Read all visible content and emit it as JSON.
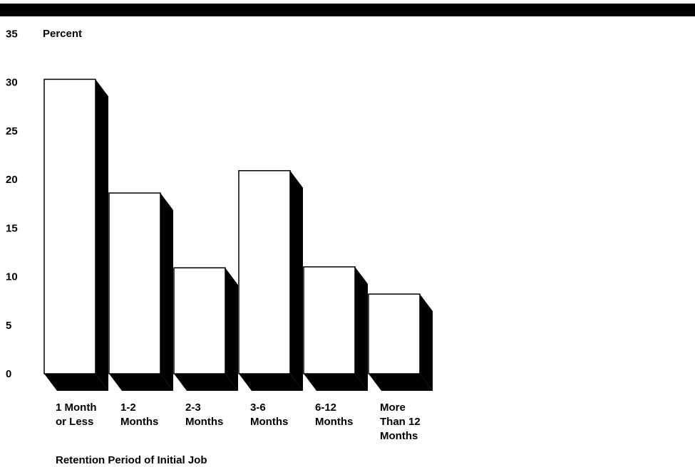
{
  "chart_data": {
    "type": "bar",
    "title": "",
    "ylabel": "Percent",
    "xlabel": "Retention Period of Initial Job",
    "ylim": [
      0,
      35
    ],
    "yticks": [
      0,
      5,
      10,
      15,
      20,
      25,
      30,
      35
    ],
    "categories": [
      [
        "1 Month",
        "or Less"
      ],
      [
        "1-2",
        "Months"
      ],
      [
        "2-3",
        "Months"
      ],
      [
        "3-6",
        "Months"
      ],
      [
        "6-12",
        "Months"
      ],
      [
        "More",
        "Than 12",
        "Months"
      ]
    ],
    "values": [
      30.3,
      18.6,
      10.9,
      20.9,
      11.0,
      8.2
    ],
    "grid": false,
    "bar_style": "3d-shadow",
    "colors": {
      "bar_face": "#ffffff",
      "bar_shadow": "#000000",
      "outline": "#000000",
      "top_bar": "#000000"
    }
  }
}
